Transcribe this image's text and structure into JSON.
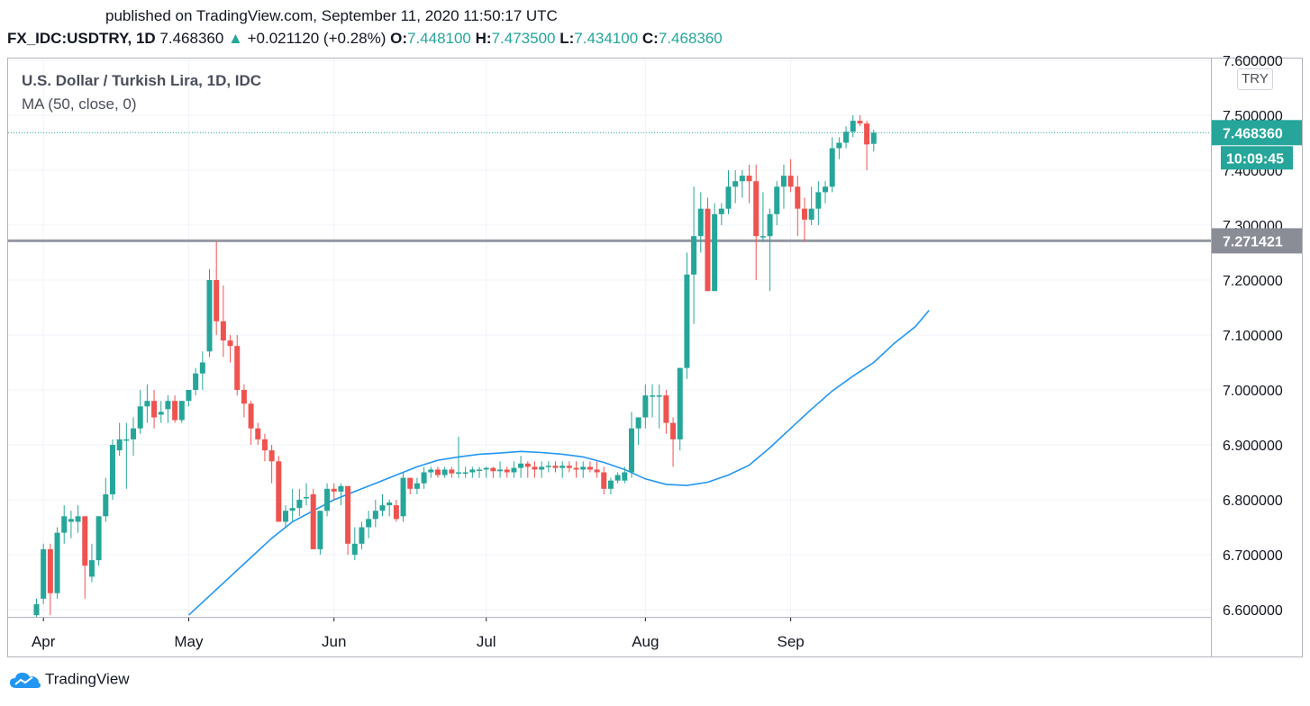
{
  "header": {
    "published": "published on TradingView.com, September 11, 2020 11:50:17 UTC",
    "symbol": "FX_IDC:USDTRY, 1D",
    "last": "7.468360",
    "arrow": "▲",
    "change": "+0.021120 (+0.28%)",
    "o_label": "O:",
    "o": "7.448100",
    "h_label": "H:",
    "h": "7.473500",
    "l_label": "L:",
    "l": "7.434100",
    "c_label": "C:",
    "c": "7.468360"
  },
  "legend": {
    "title": "U.S. Dollar / Turkish Lira, 1D, IDC",
    "ma": "MA (50, close, 0)"
  },
  "currency_badge": "TRY",
  "price_badge": "7.468360",
  "countdown": "10:09:45",
  "level_badge": "7.271421",
  "footer": {
    "brand": "TradingView"
  },
  "colors": {
    "up": "#26a69a",
    "down": "#ef5350",
    "ma": "#2196f3",
    "level": "#9598a1"
  },
  "chart_data": {
    "type": "candlestick",
    "y_range": [
      6.59,
      7.61
    ],
    "y_ticks": [
      "6.600000",
      "6.700000",
      "6.800000",
      "6.900000",
      "7.000000",
      "7.100000",
      "7.200000",
      "7.300000",
      "7.400000",
      "7.500000",
      "7.600000"
    ],
    "x_ticks": [
      {
        "label": "Apr",
        "index": 1
      },
      {
        "label": "May",
        "index": 22
      },
      {
        "label": "Jun",
        "index": 43
      },
      {
        "label": "Jul",
        "index": 65
      },
      {
        "label": "Aug",
        "index": 88
      },
      {
        "label": "Sep",
        "index": 109
      }
    ],
    "horizontal_level": 7.271421,
    "last_price": 7.46836,
    "candles": [
      [
        6.59,
        6.62,
        6.585,
        6.61
      ],
      [
        6.62,
        6.72,
        6.61,
        6.71
      ],
      [
        6.71,
        6.72,
        6.59,
        6.63
      ],
      [
        6.63,
        6.75,
        6.62,
        6.74
      ],
      [
        6.74,
        6.79,
        6.72,
        6.77
      ],
      [
        6.76,
        6.78,
        6.73,
        6.765
      ],
      [
        6.76,
        6.79,
        6.74,
        6.77
      ],
      [
        6.77,
        6.77,
        6.62,
        6.68
      ],
      [
        6.66,
        6.72,
        6.65,
        6.69
      ],
      [
        6.69,
        6.77,
        6.68,
        6.77
      ],
      [
        6.77,
        6.84,
        6.76,
        6.81
      ],
      [
        6.81,
        6.91,
        6.8,
        6.9
      ],
      [
        6.89,
        6.94,
        6.88,
        6.91
      ],
      [
        6.91,
        6.94,
        6.82,
        6.91
      ],
      [
        6.91,
        6.95,
        6.88,
        6.93
      ],
      [
        6.93,
        7.0,
        6.92,
        6.97
      ],
      [
        6.97,
        7.01,
        6.94,
        6.98
      ],
      [
        6.98,
        7.0,
        6.93,
        6.95
      ],
      [
        6.955,
        6.98,
        6.94,
        6.96
      ],
      [
        6.965,
        6.99,
        6.94,
        6.98
      ],
      [
        6.98,
        6.99,
        6.94,
        6.945
      ],
      [
        6.945,
        6.98,
        6.94,
        6.98
      ],
      [
        6.98,
        7.0,
        6.97,
        7.0
      ],
      [
        7.0,
        7.04,
        6.99,
        7.03
      ],
      [
        7.03,
        7.07,
        7.0,
        7.05
      ],
      [
        7.07,
        7.22,
        7.06,
        7.2
      ],
      [
        7.2,
        7.27,
        7.1,
        7.125
      ],
      [
        7.125,
        7.19,
        7.06,
        7.09
      ],
      [
        7.09,
        7.1,
        7.05,
        7.08
      ],
      [
        7.08,
        7.1,
        6.99,
        7.0
      ],
      [
        7.0,
        7.01,
        6.95,
        6.975
      ],
      [
        6.975,
        6.98,
        6.9,
        6.93
      ],
      [
        6.93,
        6.94,
        6.9,
        6.91
      ],
      [
        6.91,
        6.92,
        6.87,
        6.89
      ],
      [
        6.89,
        6.9,
        6.83,
        6.87
      ],
      [
        6.87,
        6.88,
        6.76,
        6.76
      ],
      [
        6.76,
        6.79,
        6.75,
        6.78
      ],
      [
        6.78,
        6.82,
        6.76,
        6.785
      ],
      [
        6.785,
        6.82,
        6.77,
        6.8
      ],
      [
        6.805,
        6.83,
        6.79,
        6.805
      ],
      [
        6.81,
        6.82,
        6.71,
        6.71
      ],
      [
        6.71,
        6.78,
        6.7,
        6.78
      ],
      [
        6.78,
        6.83,
        6.77,
        6.82
      ],
      [
        6.82,
        6.83,
        6.8,
        6.815
      ],
      [
        6.815,
        6.83,
        6.79,
        6.825
      ],
      [
        6.825,
        6.82,
        6.7,
        6.72
      ],
      [
        6.7,
        6.75,
        6.69,
        6.72
      ],
      [
        6.72,
        6.76,
        6.71,
        6.75
      ],
      [
        6.75,
        6.78,
        6.73,
        6.765
      ],
      [
        6.765,
        6.8,
        6.75,
        6.78
      ],
      [
        6.78,
        6.81,
        6.77,
        6.79
      ],
      [
        6.79,
        6.8,
        6.77,
        6.795
      ],
      [
        6.79,
        6.8,
        6.76,
        6.765
      ],
      [
        6.77,
        6.85,
        6.76,
        6.84
      ],
      [
        6.84,
        6.84,
        6.81,
        6.82
      ],
      [
        6.82,
        6.84,
        6.81,
        6.83
      ],
      [
        6.83,
        6.86,
        6.82,
        6.85
      ],
      [
        6.85,
        6.86,
        6.84,
        6.855
      ],
      [
        6.855,
        6.86,
        6.84,
        6.845
      ],
      [
        6.845,
        6.86,
        6.84,
        6.855
      ],
      [
        6.855,
        6.86,
        6.84,
        6.848
      ],
      [
        6.848,
        6.915,
        6.84,
        6.85
      ],
      [
        6.85,
        6.86,
        6.84,
        6.85
      ],
      [
        6.85,
        6.86,
        6.84,
        6.855
      ],
      [
        6.855,
        6.86,
        6.84,
        6.855
      ],
      [
        6.855,
        6.86,
        6.84,
        6.858
      ],
      [
        6.858,
        6.86,
        6.84,
        6.852
      ],
      [
        6.852,
        6.87,
        6.84,
        6.855
      ],
      [
        6.855,
        6.86,
        6.84,
        6.85
      ],
      [
        6.85,
        6.87,
        6.84,
        6.858
      ],
      [
        6.858,
        6.88,
        6.84,
        6.866
      ],
      [
        6.866,
        6.87,
        6.84,
        6.86
      ],
      [
        6.86,
        6.87,
        6.84,
        6.855
      ],
      [
        6.855,
        6.87,
        6.84,
        6.86
      ],
      [
        6.86,
        6.87,
        6.85,
        6.862
      ],
      [
        6.862,
        6.87,
        6.85,
        6.858
      ],
      [
        6.858,
        6.87,
        6.84,
        6.862
      ],
      [
        6.862,
        6.87,
        6.85,
        6.858
      ],
      [
        6.858,
        6.87,
        6.84,
        6.855
      ],
      [
        6.855,
        6.87,
        6.84,
        6.86
      ],
      [
        6.86,
        6.87,
        6.85,
        6.855
      ],
      [
        6.855,
        6.87,
        6.84,
        6.85
      ],
      [
        6.85,
        6.86,
        6.81,
        6.82
      ],
      [
        6.82,
        6.84,
        6.81,
        6.835
      ],
      [
        6.835,
        6.85,
        6.83,
        6.845
      ],
      [
        6.835,
        6.86,
        6.83,
        6.85
      ],
      [
        6.85,
        6.96,
        6.84,
        6.93
      ],
      [
        6.93,
        6.95,
        6.9,
        6.95
      ],
      [
        6.95,
        7.01,
        6.93,
        6.99
      ],
      [
        6.99,
        7.01,
        6.95,
        6.99
      ],
      [
        6.99,
        7.01,
        6.93,
        6.99
      ],
      [
        6.99,
        7.0,
        6.92,
        6.94
      ],
      [
        6.94,
        6.95,
        6.86,
        6.91
      ],
      [
        6.91,
        7.04,
        6.89,
        7.04
      ],
      [
        7.04,
        7.25,
        7.02,
        7.21
      ],
      [
        7.21,
        7.37,
        7.12,
        7.28
      ],
      [
        7.28,
        7.36,
        7.25,
        7.33
      ],
      [
        7.33,
        7.35,
        7.18,
        7.18
      ],
      [
        7.18,
        7.34,
        7.18,
        7.32
      ],
      [
        7.32,
        7.34,
        7.3,
        7.33
      ],
      [
        7.33,
        7.4,
        7.32,
        7.37
      ],
      [
        7.37,
        7.4,
        7.34,
        7.38
      ],
      [
        7.38,
        7.4,
        7.35,
        7.39
      ],
      [
        7.39,
        7.41,
        7.34,
        7.38
      ],
      [
        7.38,
        7.41,
        7.2,
        7.28
      ],
      [
        7.28,
        7.36,
        7.27,
        7.28
      ],
      [
        7.28,
        7.33,
        7.18,
        7.32
      ],
      [
        7.32,
        7.38,
        7.3,
        7.37
      ],
      [
        7.37,
        7.41,
        7.33,
        7.39
      ],
      [
        7.39,
        7.42,
        7.36,
        7.37
      ],
      [
        7.37,
        7.39,
        7.28,
        7.33
      ],
      [
        7.33,
        7.35,
        7.27,
        7.31
      ],
      [
        7.31,
        7.37,
        7.3,
        7.33
      ],
      [
        7.33,
        7.38,
        7.3,
        7.36
      ],
      [
        7.36,
        7.38,
        7.34,
        7.37
      ],
      [
        7.37,
        7.46,
        7.36,
        7.44
      ],
      [
        7.44,
        7.46,
        7.42,
        7.45
      ],
      [
        7.45,
        7.48,
        7.44,
        7.47
      ],
      [
        7.47,
        7.5,
        7.46,
        7.49
      ],
      [
        7.49,
        7.5,
        7.48,
        7.485
      ],
      [
        7.485,
        7.49,
        7.4,
        7.447
      ],
      [
        7.448,
        7.4735,
        7.4341,
        7.46836
      ]
    ],
    "ma50": [
      [
        22,
        6.59
      ],
      [
        25,
        6.625
      ],
      [
        28,
        6.66
      ],
      [
        31,
        6.695
      ],
      [
        34,
        6.73
      ],
      [
        37,
        6.76
      ],
      [
        40,
        6.78
      ],
      [
        43,
        6.8
      ],
      [
        46,
        6.815
      ],
      [
        49,
        6.83
      ],
      [
        52,
        6.845
      ],
      [
        55,
        6.86
      ],
      [
        58,
        6.872
      ],
      [
        61,
        6.878
      ],
      [
        64,
        6.883
      ],
      [
        67,
        6.885
      ],
      [
        70,
        6.888
      ],
      [
        73,
        6.886
      ],
      [
        76,
        6.883
      ],
      [
        79,
        6.878
      ],
      [
        82,
        6.868
      ],
      [
        85,
        6.855
      ],
      [
        88,
        6.838
      ],
      [
        91,
        6.828
      ],
      [
        94,
        6.826
      ],
      [
        97,
        6.832
      ],
      [
        100,
        6.845
      ],
      [
        103,
        6.863
      ],
      [
        106,
        6.895
      ],
      [
        109,
        6.93
      ],
      [
        112,
        6.965
      ],
      [
        115,
        6.998
      ],
      [
        118,
        7.025
      ],
      [
        121,
        7.05
      ],
      [
        124,
        7.085
      ],
      [
        127,
        7.115
      ],
      [
        129,
        7.145
      ]
    ]
  }
}
